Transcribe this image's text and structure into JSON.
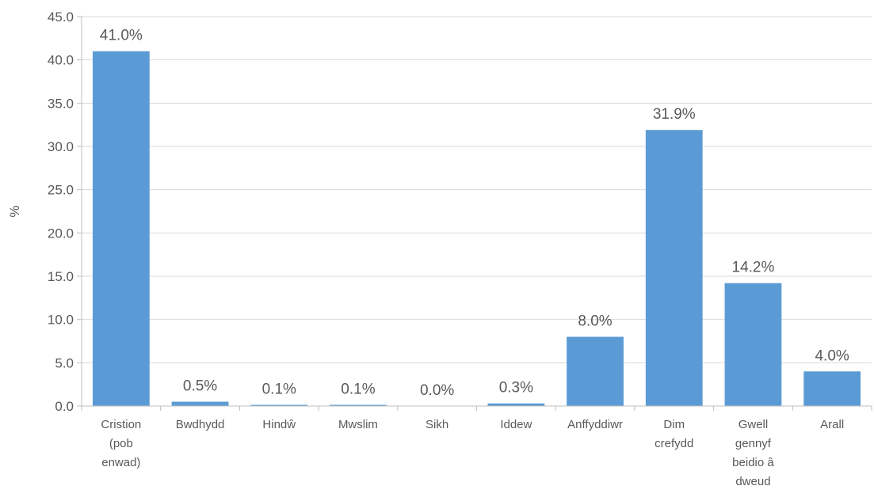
{
  "chart_data": {
    "type": "bar",
    "title": "",
    "xlabel": "",
    "ylabel": "%",
    "ylim": [
      0,
      45
    ],
    "ytick_step": 5,
    "ytick_labels": [
      "0.0",
      "5.0",
      "10.0",
      "15.0",
      "20.0",
      "25.0",
      "30.0",
      "35.0",
      "40.0",
      "45.0"
    ],
    "grid": true,
    "legend": "none",
    "bar_color": "#5B9BD5",
    "categories": [
      [
        "Cristion",
        "(pob",
        "enwad)"
      ],
      [
        "Bwdhydd"
      ],
      [
        "Hindŵ"
      ],
      [
        "Mwslim"
      ],
      [
        "Sikh"
      ],
      [
        "Iddew"
      ],
      [
        "Anffyddiwr"
      ],
      [
        "Dim",
        "crefydd"
      ],
      [
        "Gwell",
        "gennyf",
        "beidio â",
        "dweud"
      ],
      [
        "Arall"
      ]
    ],
    "values": [
      41.0,
      0.5,
      0.1,
      0.1,
      0.0,
      0.3,
      8.0,
      31.9,
      14.2,
      4.0
    ],
    "data_labels": [
      "41.0%",
      "0.5%",
      "0.1%",
      "0.1%",
      "0.0%",
      "0.3%",
      "8.0%",
      "31.9%",
      "14.2%",
      "4.0%"
    ]
  }
}
